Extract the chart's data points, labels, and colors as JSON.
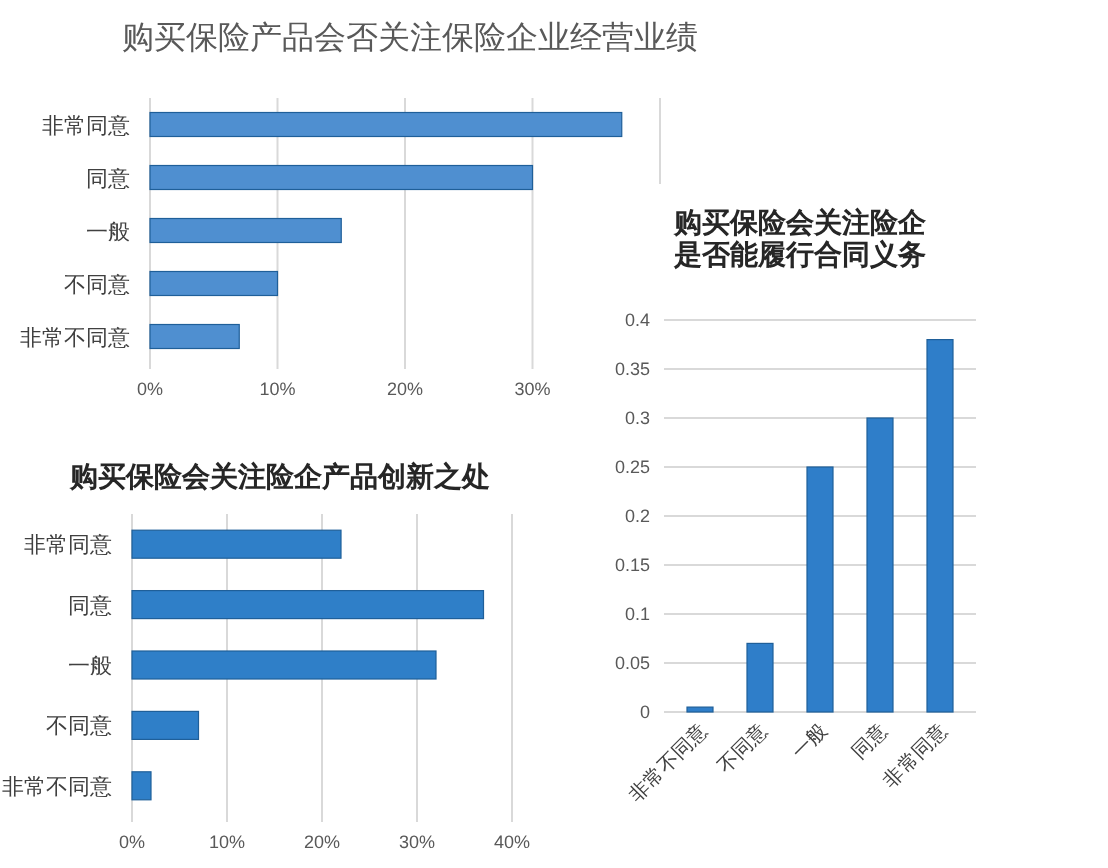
{
  "chart_data": [
    {
      "type": "bar",
      "orientation": "horizontal",
      "title": "购买保险产品会否关注保险企业经营业绩",
      "categories": [
        "非常同意",
        "同意",
        "一般",
        "不同意",
        "非常不同意"
      ],
      "values": [
        37,
        30,
        15,
        10,
        7
      ],
      "color": "#4f8fd0",
      "xlim": [
        0,
        40
      ],
      "xticks": [
        {
          "value": 0,
          "label": "0%"
        },
        {
          "value": 10,
          "label": "10%"
        },
        {
          "value": 20,
          "label": "20%"
        },
        {
          "value": 30,
          "label": "30%"
        },
        {
          "value": 40,
          "label": null
        }
      ],
      "grid": "x"
    },
    {
      "type": "bar",
      "title": "购买保险会关注险企是否能履行合同义务",
      "categories": [
        "非常不同意",
        "不同意",
        "一般",
        "同意",
        "非常同意"
      ],
      "values": [
        0.005,
        0.07,
        0.25,
        0.3,
        0.38
      ],
      "color": "#2f7ec9",
      "ylim": [
        0,
        0.4
      ],
      "yticks": [
        0,
        0.05,
        0.1,
        0.15,
        0.2,
        0.25,
        0.3,
        0.35,
        0.4
      ],
      "grid": "y"
    },
    {
      "type": "bar",
      "orientation": "horizontal",
      "title": "购买保险会关注险企产品创新之处",
      "categories": [
        "非常同意",
        "同意",
        "一般",
        "不同意",
        "非常不同意"
      ],
      "values": [
        22,
        37,
        32,
        7,
        2
      ],
      "color": "#2f7fc8",
      "xlim": [
        0,
        40
      ],
      "xticks": [
        {
          "value": 0,
          "label": "0%"
        },
        {
          "value": 10,
          "label": "10%"
        },
        {
          "value": 20,
          "label": "20%"
        },
        {
          "value": 30,
          "label": "30%"
        },
        {
          "value": 40,
          "label": "40%"
        }
      ],
      "grid": "x"
    }
  ]
}
